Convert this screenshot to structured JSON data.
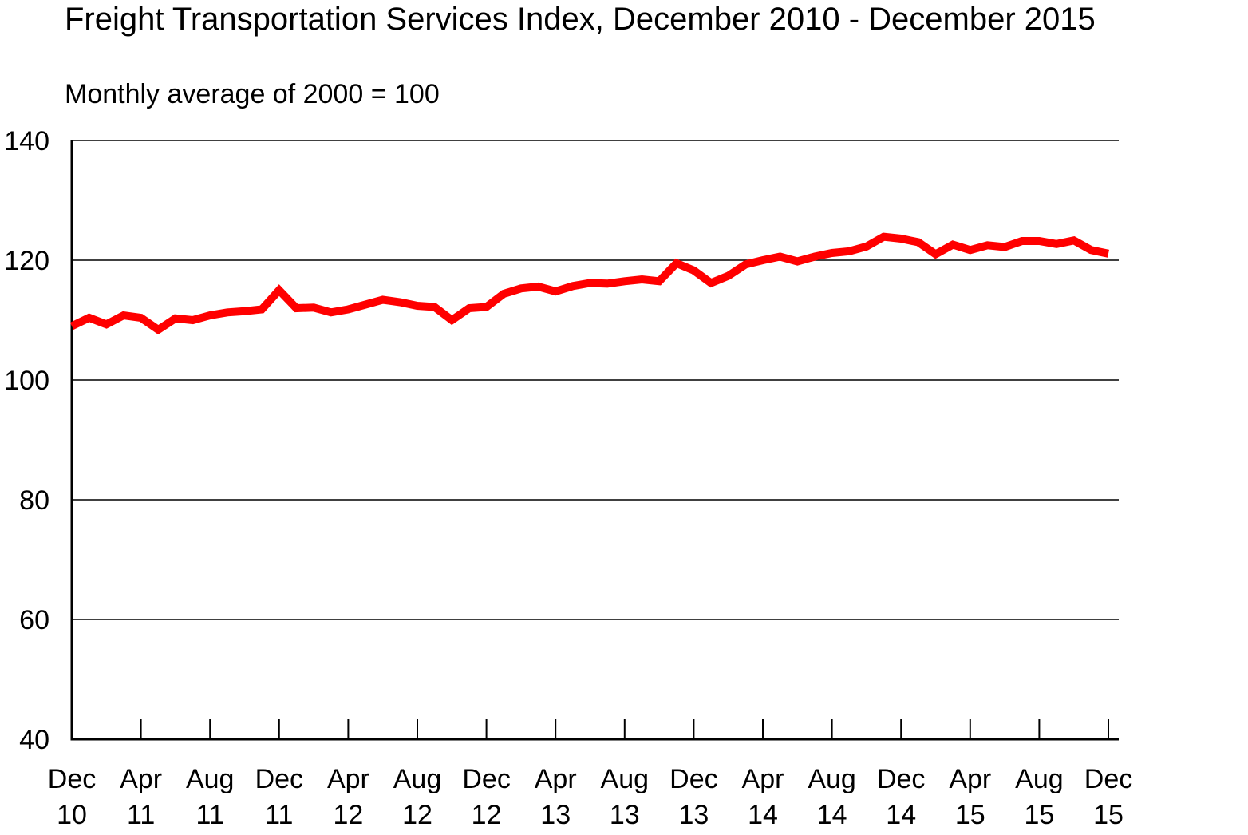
{
  "chart_data": {
    "type": "line",
    "title": "Freight Transportation Services Index, December 2010 - December 2015",
    "subtitle": "Monthly average of 2000 = 100",
    "xlabel": "",
    "ylabel": "",
    "ylim": [
      40,
      140
    ],
    "yticks": [
      "40",
      "60",
      "80",
      "100",
      "120",
      "140"
    ],
    "grid": true,
    "x_tick_labels": [
      [
        "Dec",
        "10"
      ],
      [
        "Apr",
        "11"
      ],
      [
        "Aug",
        "11"
      ],
      [
        "Dec",
        "11"
      ],
      [
        "Apr",
        "12"
      ],
      [
        "Aug",
        "12"
      ],
      [
        "Dec",
        "12"
      ],
      [
        "Apr",
        "13"
      ],
      [
        "Aug",
        "13"
      ],
      [
        "Dec",
        "13"
      ],
      [
        "Apr",
        "14"
      ],
      [
        "Aug",
        "14"
      ],
      [
        "Dec",
        "14"
      ],
      [
        "Apr",
        "15"
      ],
      [
        "Aug",
        "15"
      ],
      [
        "Dec",
        "15"
      ]
    ],
    "x": [
      "Dec 10",
      "Jan 11",
      "Feb 11",
      "Mar 11",
      "Apr 11",
      "May 11",
      "Jun 11",
      "Jul 11",
      "Aug 11",
      "Sep 11",
      "Oct 11",
      "Nov 11",
      "Dec 11",
      "Jan 12",
      "Feb 12",
      "Mar 12",
      "Apr 12",
      "May 12",
      "Jun 12",
      "Jul 12",
      "Aug 12",
      "Sep 12",
      "Oct 12",
      "Nov 12",
      "Dec 12",
      "Jan 13",
      "Feb 13",
      "Mar 13",
      "Apr 13",
      "May 13",
      "Jun 13",
      "Jul 13",
      "Aug 13",
      "Sep 13",
      "Oct 13",
      "Nov 13",
      "Dec 13",
      "Jan 14",
      "Feb 14",
      "Mar 14",
      "Apr 14",
      "May 14",
      "Jun 14",
      "Jul 14",
      "Aug 14",
      "Sep 14",
      "Oct 14",
      "Nov 14",
      "Dec 14",
      "Jan 15",
      "Feb 15",
      "Mar 15",
      "Apr 15",
      "May 15",
      "Jun 15",
      "Jul 15",
      "Aug 15",
      "Sep 15",
      "Oct 15",
      "Nov 15",
      "Dec 15"
    ],
    "series": [
      {
        "color": "#ff0000",
        "values": [
          109.0,
          110.4,
          109.3,
          110.8,
          110.4,
          108.4,
          110.3,
          110.0,
          110.8,
          111.3,
          111.5,
          111.8,
          115.0,
          112.0,
          112.1,
          111.3,
          111.8,
          112.6,
          113.4,
          113.0,
          112.4,
          112.2,
          110.0,
          112.0,
          112.2,
          114.4,
          115.3,
          115.6,
          114.8,
          115.7,
          116.2,
          116.1,
          116.5,
          116.8,
          116.5,
          119.5,
          118.3,
          116.2,
          117.4,
          119.3,
          120.0,
          120.6,
          119.8,
          120.6,
          121.2,
          121.5,
          122.3,
          123.9,
          123.6,
          123.0,
          121.0,
          122.6,
          121.7,
          122.5,
          122.2,
          123.2,
          123.2,
          122.7,
          123.3,
          121.7,
          121.1
        ]
      }
    ]
  }
}
